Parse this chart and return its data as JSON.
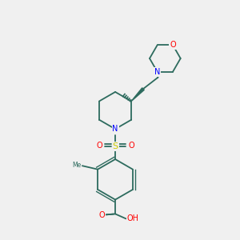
{
  "background_color": "#f0f0f0",
  "bond_color": "#2d6b5e",
  "atom_colors": {
    "O": "#ff0000",
    "N": "#0000ff",
    "S": "#cccc00",
    "C": "#2d6b5e",
    "H": "#000000"
  },
  "figsize": [
    3.0,
    3.0
  ],
  "dpi": 100
}
